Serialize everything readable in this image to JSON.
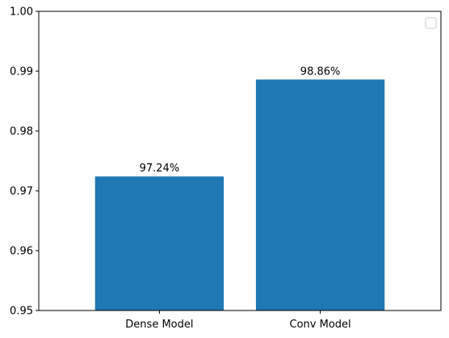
{
  "chart_data": {
    "type": "bar",
    "title": "",
    "xlabel": "",
    "ylabel": "",
    "categories": [
      "Dense Model",
      "Conv Model"
    ],
    "values": [
      0.9724,
      0.9886
    ],
    "data_labels": [
      "97.24%",
      "98.86%"
    ],
    "ylim": [
      0.95,
      1.0
    ],
    "yticks": [
      0.95,
      0.96,
      0.97,
      0.98,
      0.99,
      1.0
    ],
    "ytick_labels": [
      "0.95",
      "0.96",
      "0.97",
      "0.98",
      "0.99",
      "1.00"
    ],
    "grid": false,
    "legend": {
      "placement": "top-right",
      "entries": []
    },
    "colors": {
      "bar": "#1f77b4",
      "axis": "#000000",
      "background": "#ffffff",
      "legend_border": "#cccccc"
    }
  }
}
